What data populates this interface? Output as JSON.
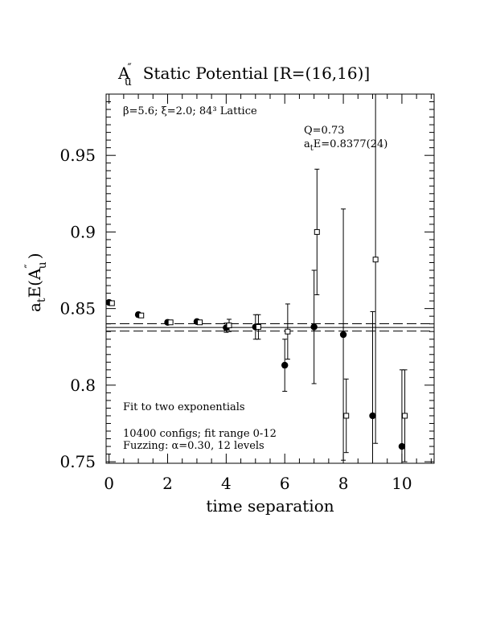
{
  "chart_data": {
    "type": "scatter",
    "title": "A″u  Static Potential [R=(16,16)]",
    "title_main": "A",
    "title_sup": "″",
    "title_sub": "u",
    "title_rest": "Static Potential [R=(16,16)]",
    "xlabel": "time separation",
    "ylabel": "atE(A″u)",
    "ylabel_a": "a",
    "ylabel_t": "t",
    "ylabel_E": "E(A",
    "ylabel_sup": "″",
    "ylabel_u": "u",
    "ylabel_close": ")",
    "xlim": [
      -0.1,
      11.1
    ],
    "ylim": [
      0.749,
      0.99
    ],
    "xticks": [
      0,
      2,
      4,
      6,
      8,
      10
    ],
    "xtick_labels": [
      "0",
      "2",
      "4",
      "6",
      "8",
      "10"
    ],
    "yticks": [
      0.75,
      0.8,
      0.85,
      0.9,
      0.95
    ],
    "ytick_labels": [
      "0.75",
      "0.8",
      "0.85",
      "0.9",
      "0.95"
    ],
    "annotations": {
      "lattice": "β=5.6; ξ=2.0; 84³ Lattice",
      "q": "Q=0.73",
      "energy_a": "a",
      "energy_t": "t",
      "energy_rest": "E=0.8377(24)",
      "fit": "Fit to two exponentials",
      "configs": "10400 configs; fit range 0-12",
      "fuzzing": "Fuzzing: α=0.30, 12 levels"
    },
    "fit_band": {
      "center": 0.8377,
      "lower": 0.8353,
      "upper": 0.8401
    },
    "series": [
      {
        "marker": "filled-circle",
        "points": [
          {
            "x": 0,
            "y": 0.854,
            "err": 0.001
          },
          {
            "x": 1,
            "y": 0.846,
            "err": 0.0015
          },
          {
            "x": 2,
            "y": 0.841,
            "err": 0.0012
          },
          {
            "x": 3,
            "y": 0.8415,
            "err": 0.0012
          },
          {
            "x": 4,
            "y": 0.8375,
            "err": 0.003
          },
          {
            "x": 5,
            "y": 0.838,
            "err": 0.008
          },
          {
            "x": 6,
            "y": 0.813,
            "err": 0.017
          },
          {
            "x": 7,
            "y": 0.838,
            "err": 0.037
          },
          {
            "x": 8,
            "y": 0.833,
            "err": 0.082
          },
          {
            "x": 9,
            "y": 0.78,
            "err": 0.068
          },
          {
            "x": 10,
            "y": 0.76,
            "err": 0.05
          }
        ]
      },
      {
        "marker": "open-square",
        "points": [
          {
            "x": 0.1,
            "y": 0.8535,
            "err": 0.001
          },
          {
            "x": 1.1,
            "y": 0.8455,
            "err": 0.001
          },
          {
            "x": 2.1,
            "y": 0.841,
            "err": 0.0012
          },
          {
            "x": 3.1,
            "y": 0.841,
            "err": 0.0012
          },
          {
            "x": 4.1,
            "y": 0.839,
            "err": 0.004
          },
          {
            "x": 5.1,
            "y": 0.838,
            "err": 0.008
          },
          {
            "x": 6.1,
            "y": 0.835,
            "err": 0.018
          },
          {
            "x": 7.1,
            "y": 0.9,
            "err": 0.041
          },
          {
            "x": 8.1,
            "y": 0.78,
            "err": 0.024
          },
          {
            "x": 9.1,
            "y": 0.882,
            "err": 0.12
          },
          {
            "x": 10.1,
            "y": 0.78,
            "err": 0.03
          }
        ]
      }
    ]
  }
}
